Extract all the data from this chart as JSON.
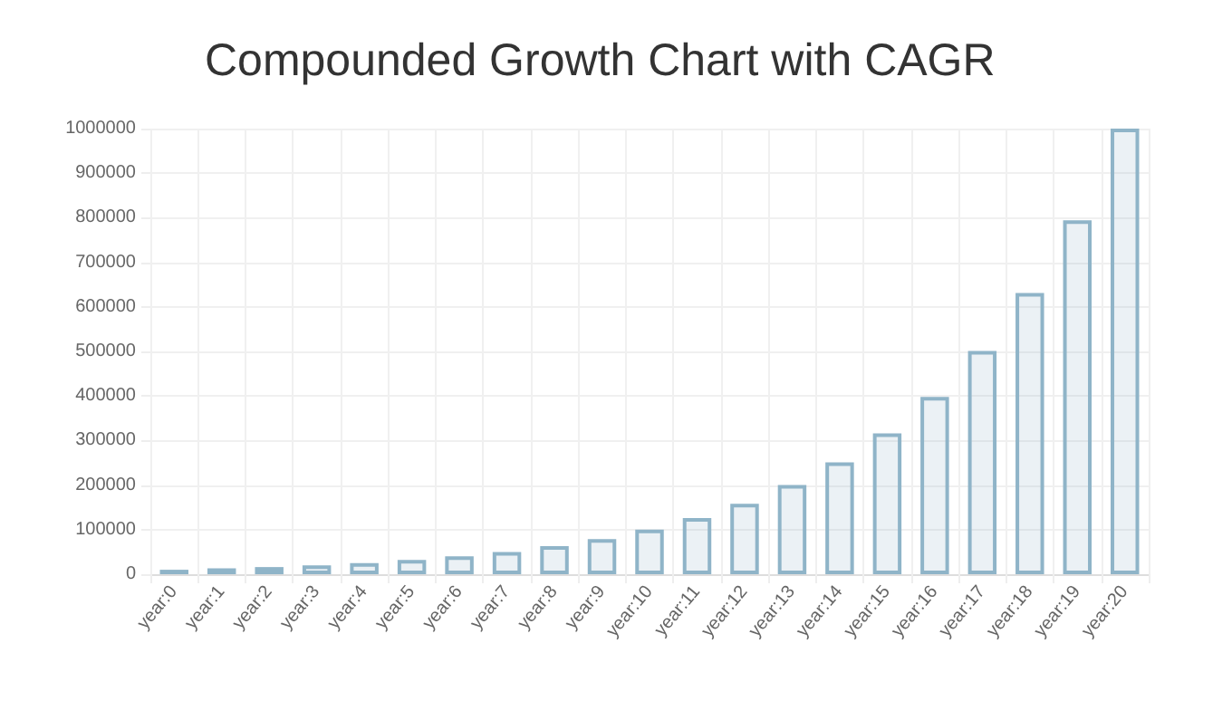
{
  "chart_data": {
    "type": "bar",
    "title": "Compounded Growth Chart with CAGR",
    "categories": [
      "year:0",
      "year:1",
      "year:2",
      "year:3",
      "year:4",
      "year:5",
      "year:6",
      "year:7",
      "year:8",
      "year:9",
      "year:10",
      "year:11",
      "year:12",
      "year:13",
      "year:14",
      "year:15",
      "year:16",
      "year:17",
      "year:18",
      "year:19",
      "year:20"
    ],
    "values": [
      10000,
      13000,
      16000,
      20000,
      25000,
      32000,
      40000,
      50000,
      63000,
      79000,
      100000,
      126000,
      158000,
      200000,
      251000,
      316000,
      398000,
      501000,
      631000,
      794000,
      1000000
    ],
    "color": "#8fb4c8",
    "ylim": [
      0,
      1000000
    ],
    "yticks": [
      0,
      100000,
      200000,
      300000,
      400000,
      500000,
      600000,
      700000,
      800000,
      900000,
      1000000
    ],
    "grid": true
  }
}
